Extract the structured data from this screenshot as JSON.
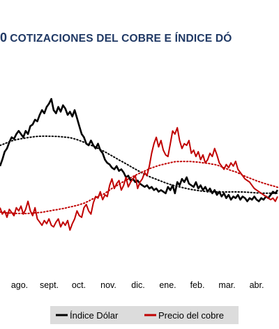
{
  "chart_data": {
    "type": "line",
    "title_number": "0",
    "title": "COTIZACIONES DEL COBRE E ÍNDICE DÓ",
    "xlabel": "",
    "ylabel": "",
    "x_tick_labels": [
      "ago.",
      "sept.",
      "oct.",
      "nov.",
      "dic.",
      "ene.",
      "feb.",
      "mar.",
      "abr."
    ],
    "legend_position": "bottom",
    "grid": false,
    "y_range_index": [
      0,
      100
    ],
    "series": [
      {
        "name": "Índice Dólar",
        "color": "#000000",
        "style": "solid",
        "values": [
          44,
          48,
          53,
          55,
          59,
          62,
          61,
          64,
          66,
          64,
          62,
          66,
          64,
          69,
          70,
          73,
          72,
          76,
          79,
          77,
          81,
          83,
          86,
          79,
          77,
          81,
          78,
          82,
          80,
          76,
          78,
          75,
          79,
          74,
          69,
          64,
          62,
          58,
          57,
          60,
          57,
          55,
          58,
          54,
          52,
          48,
          46,
          45,
          43,
          42,
          44,
          41,
          42,
          40,
          37,
          38,
          35,
          36,
          34,
          35,
          33,
          32,
          31,
          32,
          30,
          31,
          29,
          30,
          28,
          29,
          28,
          27,
          31,
          29,
          32,
          27,
          34,
          32,
          36,
          34,
          37,
          33,
          32,
          31,
          34,
          30,
          32,
          29,
          31,
          28,
          30,
          27,
          29,
          26,
          28,
          25,
          27,
          24,
          26,
          23,
          25,
          24,
          26,
          23,
          25,
          24,
          22,
          24,
          23,
          25,
          23,
          22,
          24,
          23,
          25,
          24,
          26,
          28,
          27,
          29
        ]
      },
      {
        "name": "Precio del cobre",
        "color": "#c00000",
        "style": "solid",
        "values": [
          18,
          14,
          16,
          12,
          17,
          15,
          13,
          18,
          16,
          19,
          14,
          17,
          22,
          16,
          13,
          18,
          11,
          9,
          7,
          10,
          8,
          11,
          7,
          6,
          9,
          11,
          6,
          9,
          7,
          10,
          4,
          8,
          11,
          16,
          13,
          12,
          18,
          20,
          16,
          14,
          21,
          25,
          24,
          28,
          23,
          26,
          25,
          32,
          36,
          30,
          33,
          35,
          29,
          32,
          37,
          31,
          34,
          36,
          38,
          30,
          34,
          36,
          40,
          38,
          44,
          52,
          58,
          62,
          56,
          60,
          54,
          51,
          50,
          58,
          66,
          64,
          68,
          60,
          55,
          58,
          57,
          60,
          52,
          54,
          50,
          53,
          48,
          51,
          46,
          48,
          52,
          50,
          55,
          51,
          46,
          44,
          42,
          45,
          43,
          46,
          44,
          47,
          42,
          40,
          38,
          36,
          35,
          34,
          32,
          30,
          29,
          28,
          27,
          26,
          25,
          24,
          23,
          24,
          22,
          25
        ]
      }
    ],
    "trend_lines": [
      {
        "follows": "Índice Dólar",
        "color": "#000000",
        "style": "dotted"
      },
      {
        "follows": "Precio del cobre",
        "color": "#c00000",
        "style": "dotted"
      }
    ]
  }
}
